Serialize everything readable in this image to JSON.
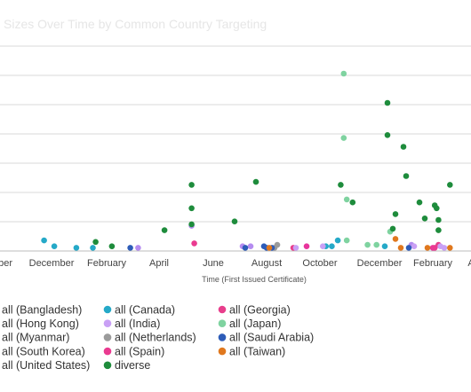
{
  "chart_data": {
    "type": "scatter",
    "title": "Sizes Over Time by Common Country Targeting",
    "xlabel": "Time (First Issued Certificate)",
    "ylabel": "",
    "x_tick_labels": [
      "ober",
      "December",
      "February",
      "April",
      "June",
      "August",
      "October",
      "December",
      "February",
      "A"
    ],
    "grid": true,
    "legend_position": "bottom",
    "series": [
      {
        "name": "all (Bangladesh)",
        "color": "#8a8a8a",
        "points": []
      },
      {
        "name": "all (Canada)",
        "color": "#25a9c8",
        "points": [
          [
            1.7,
            0.3
          ],
          [
            2.1,
            0.1
          ],
          [
            2.9,
            0.05
          ],
          [
            3.5,
            0.05
          ],
          [
            12.2,
            0.1
          ],
          [
            12.4,
            0.1
          ],
          [
            12.6,
            0.3
          ],
          [
            14.2,
            0.1
          ]
        ]
      },
      {
        "name": "all (Georgia)",
        "color": "#e83e8c",
        "points": [
          [
            11.0,
            0.05
          ],
          [
            16.3,
            0.15
          ]
        ]
      },
      {
        "name": "all (Hong Kong)",
        "color": "#b58cf0",
        "points": [
          [
            5.2,
            0.05
          ],
          [
            7.2,
            0.8
          ],
          [
            9.1,
            0.1
          ],
          [
            9.4,
            0.1
          ],
          [
            15.2,
            0.15
          ]
        ]
      },
      {
        "name": "all (India)",
        "color": "#c9a0f5",
        "points": [
          [
            11.1,
            0.05
          ],
          [
            12.1,
            0.1
          ],
          [
            15.3,
            0.1
          ],
          [
            16.4,
            0.1
          ],
          [
            16.6,
            0.05
          ]
        ]
      },
      {
        "name": "all (Japan)",
        "color": "#7fd3a0",
        "points": [
          [
            12.8,
            6.0
          ],
          [
            12.8,
            3.8
          ],
          [
            12.9,
            1.7
          ],
          [
            12.9,
            0.3
          ],
          [
            13.6,
            0.15
          ],
          [
            13.9,
            0.15
          ],
          [
            14.4,
            0.6
          ]
        ]
      },
      {
        "name": "all (Myanmar)",
        "color": "#e0e0e0",
        "points": []
      },
      {
        "name": "all (Netherlands)",
        "color": "#9b9b9b",
        "points": [
          [
            10.4,
            0.15
          ],
          [
            10.3,
            0.05
          ]
        ]
      },
      {
        "name": "all (Saudi Arabia)",
        "color": "#2d5cb8",
        "points": [
          [
            4.9,
            0.05
          ],
          [
            9.2,
            0.05
          ],
          [
            9.9,
            0.1
          ],
          [
            10.0,
            0.05
          ],
          [
            10.2,
            0.05
          ],
          [
            15.1,
            0.05
          ]
        ]
      },
      {
        "name": "all (South Korea)",
        "color": "#e8359c",
        "points": [
          [
            11.5,
            0.1
          ],
          [
            16.0,
            0.05
          ]
        ]
      },
      {
        "name": "all (Spain)",
        "color": "#ea3a90",
        "points": [
          [
            7.3,
            0.2
          ],
          [
            16.1,
            0.05
          ]
        ]
      },
      {
        "name": "all (Taiwan)",
        "color": "#e0781e",
        "points": [
          [
            14.6,
            0.35
          ],
          [
            10.1,
            0.05
          ],
          [
            14.8,
            0.05
          ],
          [
            15.8,
            0.05
          ],
          [
            16.9,
            0.05
          ]
        ]
      },
      {
        "name": "all (United States)",
        "color": "#c0c0c0",
        "points": []
      },
      {
        "name": "diverse",
        "color": "#1e8c3c",
        "points": [
          [
            3.6,
            0.25
          ],
          [
            4.2,
            0.1
          ],
          [
            6.2,
            0.65
          ],
          [
            7.2,
            2.2
          ],
          [
            7.2,
            1.4
          ],
          [
            7.2,
            0.85
          ],
          [
            8.8,
            0.95
          ],
          [
            9.6,
            2.3
          ],
          [
            12.7,
            2.2
          ],
          [
            13.1,
            1.6
          ],
          [
            14.5,
            0.7
          ],
          [
            14.6,
            1.2
          ],
          [
            14.9,
            3.5
          ],
          [
            15.0,
            2.5
          ],
          [
            15.5,
            1.6
          ],
          [
            15.7,
            1.05
          ],
          [
            16.1,
            1.5
          ],
          [
            16.2,
            1.4
          ],
          [
            16.3,
            1.0
          ],
          [
            16.3,
            0.65
          ],
          [
            16.9,
            2.2
          ],
          [
            14.3,
            5.0
          ],
          [
            14.3,
            3.9
          ]
        ]
      }
    ],
    "legend_order_rows": [
      [
        "all (Bangladesh)",
        "all (Canada)",
        "all (Georgia)"
      ],
      [
        "all (Hong Kong)",
        "all (India)",
        "all (Japan)"
      ],
      [
        "all (Myanmar)",
        "all (Netherlands)",
        "all (Saudi Arabia)"
      ],
      [
        "all (South Korea)",
        "all (Spain)",
        "all (Taiwan)"
      ],
      [
        "all (United States)",
        "diverse"
      ]
    ]
  }
}
